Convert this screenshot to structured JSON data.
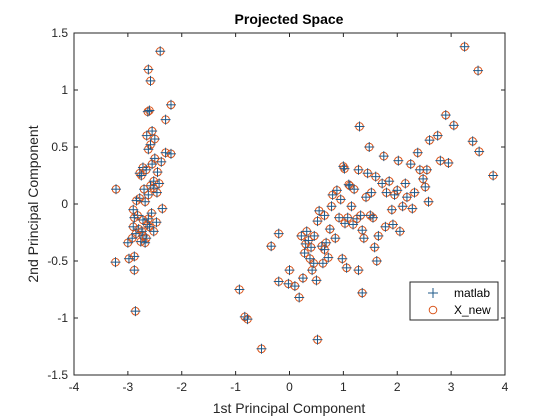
{
  "figure": {
    "background": "#ffffff"
  },
  "chart_data": {
    "type": "scatter",
    "title": "Projected Space",
    "xlabel": "1st Principal Component",
    "ylabel": "2nd Principal Component",
    "xlim": [
      -4,
      4
    ],
    "ylim": [
      -1.5,
      1.5
    ],
    "xticks": [
      -4,
      -3,
      -2,
      -1,
      0,
      1,
      2,
      3,
      4
    ],
    "xtick_labels": [
      "-4",
      "-3",
      "-2",
      "-1",
      "0",
      "1",
      "2",
      "3",
      "4"
    ],
    "yticks": [
      -1.5,
      -1,
      -0.5,
      0,
      0.5,
      1,
      1.5
    ],
    "ytick_labels": [
      "-1.5",
      "-1",
      "-0.5",
      "0",
      "0.5",
      "1",
      "1.5"
    ],
    "grid": false,
    "legend_position": "bottom-right",
    "series": [
      {
        "name": "matlab",
        "marker": "plus",
        "color": "#1f5a8a"
      },
      {
        "name": "X_new",
        "marker": "circle",
        "color": "#d9541a"
      }
    ],
    "points": [
      [
        -2.4,
        1.34
      ],
      [
        -2.62,
        1.18
      ],
      [
        -2.58,
        1.08
      ],
      [
        -2.2,
        0.87
      ],
      [
        -2.63,
        0.81
      ],
      [
        -2.6,
        0.82
      ],
      [
        -2.3,
        0.74
      ],
      [
        -2.55,
        0.64
      ],
      [
        -2.65,
        0.6
      ],
      [
        -2.5,
        0.57
      ],
      [
        -2.58,
        0.52
      ],
      [
        -2.62,
        0.48
      ],
      [
        -2.3,
        0.45
      ],
      [
        -2.2,
        0.44
      ],
      [
        -2.5,
        0.4
      ],
      [
        -2.38,
        0.37
      ],
      [
        -2.55,
        0.35
      ],
      [
        -2.72,
        0.32
      ],
      [
        -2.66,
        0.3
      ],
      [
        -2.45,
        0.28
      ],
      [
        -2.78,
        0.27
      ],
      [
        -2.75,
        0.25
      ],
      [
        -2.52,
        0.2
      ],
      [
        -2.42,
        0.18
      ],
      [
        -2.58,
        0.16
      ],
      [
        -2.52,
        0.14
      ],
      [
        -2.7,
        0.13
      ],
      [
        -3.22,
        0.13
      ],
      [
        -2.46,
        0.1
      ],
      [
        -2.62,
        0.08
      ],
      [
        -2.78,
        0.05
      ],
      [
        -2.84,
        0.03
      ],
      [
        -2.68,
        0.02
      ],
      [
        -2.36,
        -0.04
      ],
      [
        -2.9,
        -0.05
      ],
      [
        -2.56,
        -0.08
      ],
      [
        -2.82,
        -0.1
      ],
      [
        -2.88,
        -0.12
      ],
      [
        -2.62,
        -0.13
      ],
      [
        -2.72,
        -0.14
      ],
      [
        -2.47,
        -0.16
      ],
      [
        -2.64,
        -0.18
      ],
      [
        -2.9,
        -0.2
      ],
      [
        -2.8,
        -0.22
      ],
      [
        -2.6,
        -0.2
      ],
      [
        -2.52,
        -0.24
      ],
      [
        -2.74,
        -0.24
      ],
      [
        -2.85,
        -0.26
      ],
      [
        -2.72,
        -0.28
      ],
      [
        -2.66,
        -0.3
      ],
      [
        -2.92,
        -0.3
      ],
      [
        -2.76,
        -0.33
      ],
      [
        -3.0,
        -0.34
      ],
      [
        -2.68,
        -0.34
      ],
      [
        -2.88,
        -0.46
      ],
      [
        -2.98,
        -0.48
      ],
      [
        -3.23,
        -0.51
      ],
      [
        -2.88,
        -0.58
      ],
      [
        -2.86,
        -0.94
      ],
      [
        -0.93,
        -0.75
      ],
      [
        -0.83,
        -0.99
      ],
      [
        -0.78,
        -1.01
      ],
      [
        -0.52,
        -1.27
      ],
      [
        0.52,
        -1.19
      ],
      [
        -0.34,
        -0.37
      ],
      [
        -0.2,
        -0.26
      ],
      [
        -0.2,
        -0.68
      ],
      [
        0.0,
        -0.58
      ],
      [
        -0.02,
        -0.7
      ],
      [
        0.1,
        -0.72
      ],
      [
        0.18,
        -0.82
      ],
      [
        0.22,
        -0.28
      ],
      [
        0.25,
        -0.65
      ],
      [
        0.28,
        -0.43
      ],
      [
        0.3,
        -0.35
      ],
      [
        0.32,
        -0.24
      ],
      [
        0.35,
        -0.32
      ],
      [
        0.38,
        -0.48
      ],
      [
        0.4,
        -0.38
      ],
      [
        0.42,
        -0.58
      ],
      [
        0.45,
        -0.52
      ],
      [
        0.46,
        -0.28
      ],
      [
        0.5,
        -0.67
      ],
      [
        0.52,
        -0.15
      ],
      [
        0.55,
        -0.06
      ],
      [
        0.6,
        -0.37
      ],
      [
        0.62,
        -0.52
      ],
      [
        0.65,
        -0.1
      ],
      [
        0.65,
        -0.4
      ],
      [
        0.68,
        -0.34
      ],
      [
        0.72,
        -0.47
      ],
      [
        0.75,
        -0.22
      ],
      [
        0.78,
        -0.02
      ],
      [
        0.8,
        0.08
      ],
      [
        0.85,
        -0.3
      ],
      [
        0.88,
        0.12
      ],
      [
        0.92,
        -0.12
      ],
      [
        0.95,
        0.04
      ],
      [
        0.98,
        -0.48
      ],
      [
        1.0,
        0.33
      ],
      [
        1.02,
        0.31
      ],
      [
        1.03,
        -0.17
      ],
      [
        1.06,
        -0.56
      ],
      [
        1.08,
        -0.12
      ],
      [
        1.1,
        0.17
      ],
      [
        1.12,
        0.16
      ],
      [
        1.15,
        -0.02
      ],
      [
        1.18,
        -0.18
      ],
      [
        1.2,
        0.13
      ],
      [
        1.25,
        -0.13
      ],
      [
        1.28,
        -0.58
      ],
      [
        1.28,
        0.3
      ],
      [
        1.3,
        0.68
      ],
      [
        1.32,
        -0.1
      ],
      [
        1.35,
        -0.23
      ],
      [
        1.35,
        -0.78
      ],
      [
        1.38,
        -0.3
      ],
      [
        1.42,
        0.06
      ],
      [
        1.45,
        0.27
      ],
      [
        1.48,
        0.5
      ],
      [
        1.5,
        -0.1
      ],
      [
        1.52,
        0.1
      ],
      [
        1.55,
        -0.12
      ],
      [
        1.58,
        -0.38
      ],
      [
        1.6,
        0.24
      ],
      [
        1.62,
        -0.5
      ],
      [
        1.65,
        -0.28
      ],
      [
        1.72,
        0.18
      ],
      [
        1.75,
        0.42
      ],
      [
        1.78,
        -0.2
      ],
      [
        1.8,
        0.1
      ],
      [
        1.85,
        0.2
      ],
      [
        1.9,
        -0.05
      ],
      [
        1.92,
        -0.18
      ],
      [
        1.95,
        0.08
      ],
      [
        2.0,
        0.12
      ],
      [
        2.02,
        0.38
      ],
      [
        2.05,
        -0.24
      ],
      [
        2.1,
        -0.02
      ],
      [
        2.15,
        0.18
      ],
      [
        2.18,
        0.06
      ],
      [
        2.25,
        0.35
      ],
      [
        2.28,
        -0.04
      ],
      [
        2.32,
        0.1
      ],
      [
        2.38,
        0.45
      ],
      [
        2.42,
        0.3
      ],
      [
        2.48,
        0.22
      ],
      [
        2.52,
        0.15
      ],
      [
        2.55,
        0.3
      ],
      [
        2.58,
        0.02
      ],
      [
        2.6,
        0.56
      ],
      [
        2.75,
        0.6
      ],
      [
        2.8,
        0.38
      ],
      [
        2.9,
        0.78
      ],
      [
        2.95,
        0.36
      ],
      [
        3.05,
        0.69
      ],
      [
        3.25,
        1.38
      ],
      [
        3.4,
        0.55
      ],
      [
        3.5,
        1.17
      ],
      [
        3.52,
        0.46
      ],
      [
        3.78,
        0.25
      ]
    ]
  }
}
